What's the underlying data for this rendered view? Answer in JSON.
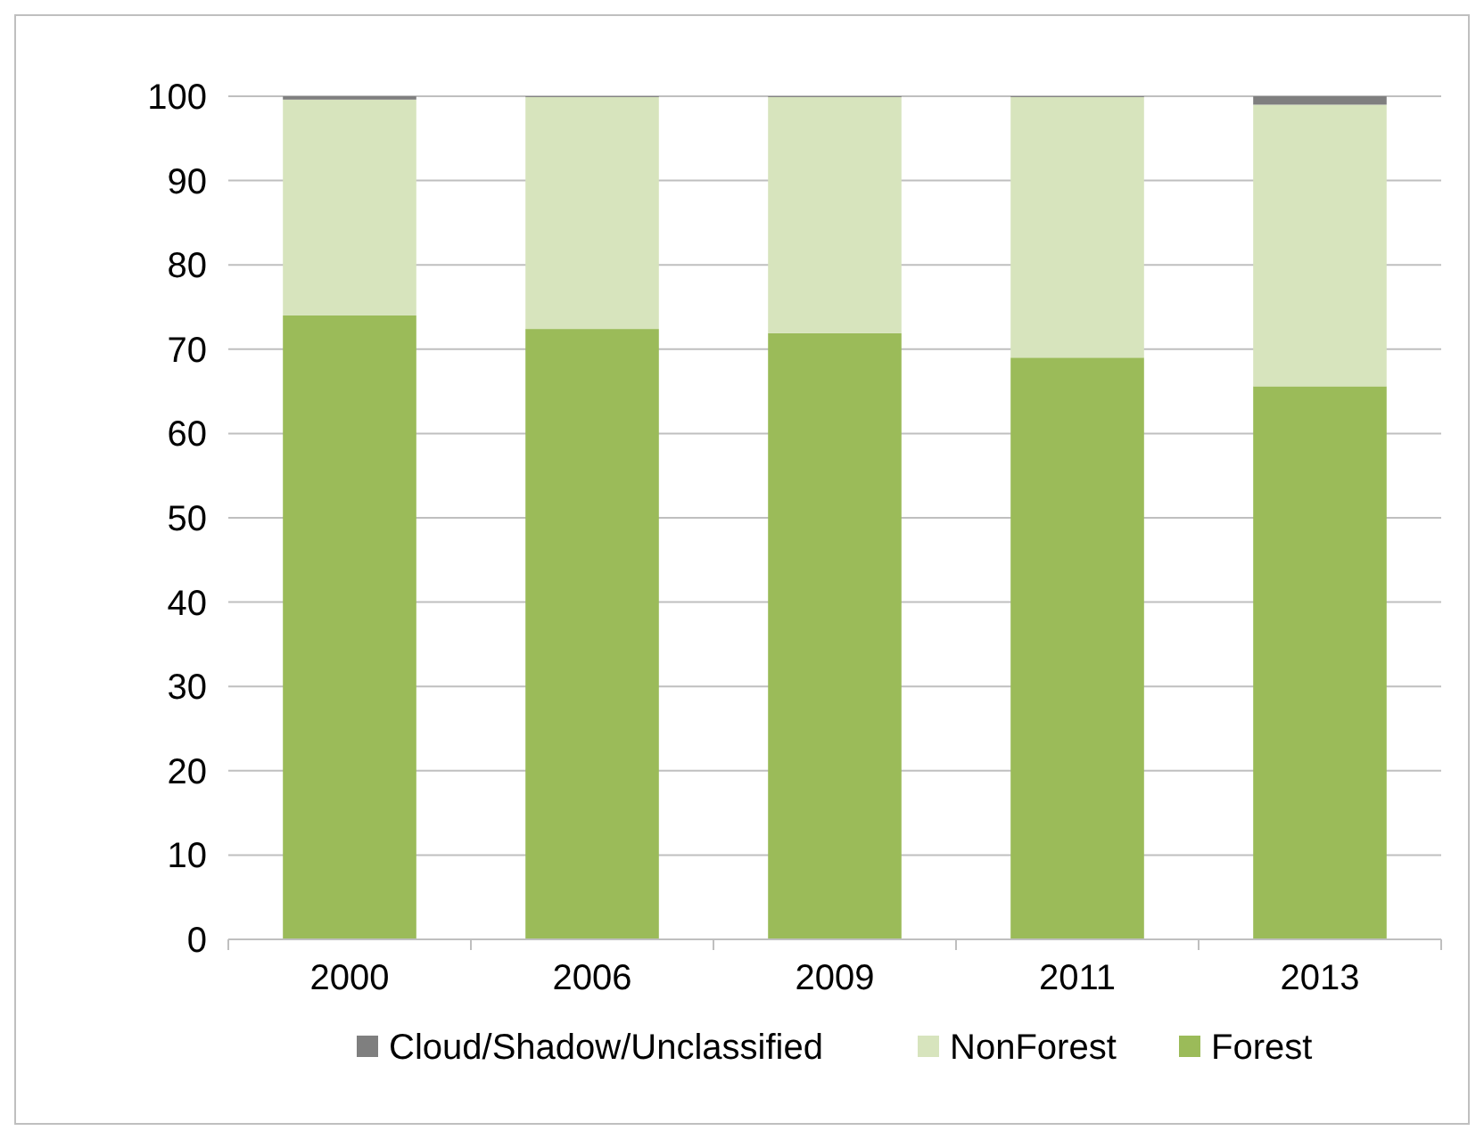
{
  "chart_data": {
    "type": "bar",
    "stacked": true,
    "categories": [
      "2000",
      "2006",
      "2009",
      "2011",
      "2013"
    ],
    "series": [
      {
        "name": "Forest",
        "color": "#9bbb59",
        "values": [
          74,
          72.4,
          71.9,
          69,
          65.6
        ]
      },
      {
        "name": "NonForest",
        "color": "#d7e4bd",
        "values": [
          25.6,
          27.5,
          28,
          30.9,
          33.4
        ]
      },
      {
        "name": "Cloud/Shadow/Unclassified",
        "color": "#7f7f7f",
        "values": [
          0.4,
          0.1,
          0.1,
          0.1,
          1
        ]
      }
    ],
    "ylim": [
      0,
      100
    ],
    "yticks": [
      0,
      10,
      20,
      30,
      40,
      50,
      60,
      70,
      80,
      90,
      100
    ],
    "grid": "y",
    "legend": "bottom"
  }
}
